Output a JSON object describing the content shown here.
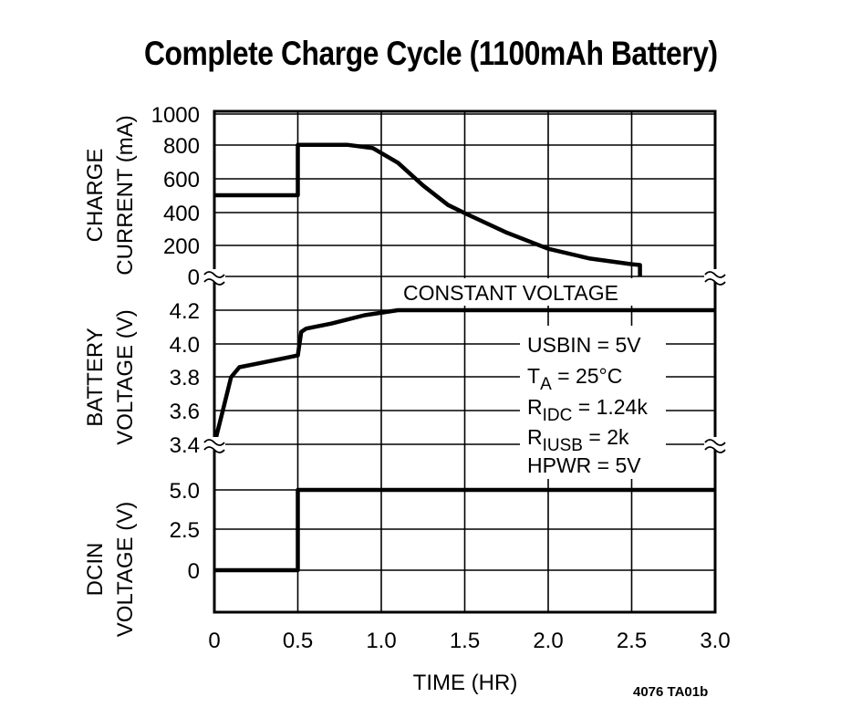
{
  "title": "Complete Charge Cycle (1100mAh Battery)",
  "figure_id": "4076 TA01b",
  "chart_data": {
    "type": "line",
    "title": "Complete Charge Cycle (1100mAh Battery)",
    "xlabel": "TIME (HR)",
    "xlim": [
      0,
      3.0
    ],
    "x_ticks": [
      "0",
      "0.5",
      "1.0",
      "1.5",
      "2.0",
      "2.5",
      "3.0"
    ],
    "grid": true,
    "panels": [
      {
        "name": "charge_current",
        "ylabel": [
          "CHARGE",
          "CURRENT (mA)"
        ],
        "y_ticks": [
          "1000",
          "800",
          "600",
          "400",
          "200",
          "0"
        ],
        "ylim": [
          0,
          1000
        ],
        "axis_break_at_bottom": true,
        "series": [
          {
            "name": "Charge Current",
            "x": [
              0,
              0.5,
              0.5,
              0.8,
              0.95,
              1.1,
              1.25,
              1.4,
              1.5,
              1.75,
              2.0,
              2.25,
              2.5,
              2.55,
              2.55
            ],
            "y": [
              500,
              500,
              810,
              810,
              790,
              700,
              560,
              440,
              390,
              270,
              170,
              110,
              75,
              70,
              0
            ]
          }
        ]
      },
      {
        "name": "battery_voltage",
        "ylabel": [
          "BATTERY",
          "VOLTAGE (V)"
        ],
        "y_ticks": [
          "4.2",
          "4.0",
          "3.8",
          "3.6",
          "3.4"
        ],
        "ylim": [
          3.4,
          4.2
        ],
        "axis_break_at_bottom": true,
        "series": [
          {
            "name": "Battery Voltage",
            "x": [
              0,
              0.05,
              0.1,
              0.15,
              0.25,
              0.4,
              0.5,
              0.52,
              0.55,
              0.7,
              0.9,
              1.1,
              1.25,
              3.0
            ],
            "y": [
              3.4,
              3.6,
              3.8,
              3.86,
              3.88,
              3.91,
              3.93,
              4.07,
              4.09,
              4.12,
              4.17,
              4.2,
              4.2,
              4.2
            ]
          }
        ]
      },
      {
        "name": "dcin_voltage",
        "ylabel": [
          "DCIN",
          "VOLTAGE (V)"
        ],
        "y_ticks": [
          "5.0",
          "2.5",
          "0"
        ],
        "ylim": [
          -2.5,
          5.0
        ],
        "series": [
          {
            "name": "DCIN Voltage",
            "x": [
              0,
              0.5,
              0.5,
              3.0
            ],
            "y": [
              0,
              0,
              5.0,
              5.0
            ]
          }
        ]
      }
    ],
    "annotations": [
      "CONSTANT VOLTAGE"
    ],
    "conditions": [
      {
        "label": "USBIN",
        "sub": "",
        "value": "= 5V"
      },
      {
        "label": "T",
        "sub": "A",
        "value": "= 25°C"
      },
      {
        "label": "R",
        "sub": "IDC",
        "value": "= 1.24k"
      },
      {
        "label": "R",
        "sub": "IUSB",
        "value": "= 2k"
      },
      {
        "label": "HPWR",
        "sub": "",
        "value": "= 5V"
      }
    ]
  }
}
